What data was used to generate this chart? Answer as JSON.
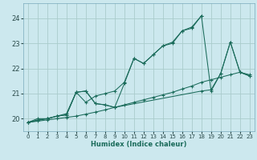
{
  "xlabel": "Humidex (Indice chaleur)",
  "ylabel": "",
  "background_color": "#cce8ee",
  "grid_color": "#aacccc",
  "line_color": "#1a6b5a",
  "xlim": [
    -0.5,
    23.5
  ],
  "ylim": [
    19.5,
    24.6
  ],
  "yticks": [
    20,
    21,
    22,
    23,
    24
  ],
  "xticks": [
    0,
    1,
    2,
    3,
    4,
    5,
    6,
    7,
    8,
    9,
    10,
    11,
    12,
    13,
    14,
    15,
    16,
    17,
    18,
    19,
    20,
    21,
    22,
    23
  ],
  "series": [
    {
      "x": [
        0,
        1,
        2,
        3,
        4,
        5,
        6,
        7,
        8,
        9,
        10,
        11,
        12,
        13,
        14,
        15,
        16,
        17,
        18
      ],
      "y": [
        19.85,
        20.0,
        20.0,
        20.1,
        20.2,
        21.05,
        20.65,
        20.9,
        21.0,
        21.1,
        21.45,
        22.4,
        22.2,
        22.55,
        22.9,
        23.0,
        23.5,
        23.6,
        24.1
      ]
    },
    {
      "x": [
        0,
        1,
        2,
        3,
        4,
        5,
        6,
        7,
        8,
        9,
        10,
        11,
        12,
        13,
        14,
        15,
        16,
        17,
        18,
        19,
        20,
        21,
        22,
        23
      ],
      "y": [
        19.85,
        19.9,
        19.95,
        20.0,
        20.05,
        20.1,
        20.18,
        20.26,
        20.35,
        20.45,
        20.55,
        20.65,
        20.75,
        20.85,
        20.95,
        21.05,
        21.18,
        21.3,
        21.45,
        21.55,
        21.65,
        21.75,
        21.85,
        21.75
      ]
    },
    {
      "x": [
        0,
        1,
        2,
        3,
        4,
        5,
        6,
        7,
        8,
        9,
        18,
        19,
        20,
        21,
        22,
        23
      ],
      "y": [
        19.85,
        19.95,
        20.0,
        20.1,
        20.15,
        21.05,
        21.1,
        20.6,
        20.55,
        20.45,
        21.1,
        21.15,
        21.8,
        23.05,
        21.85,
        21.7
      ]
    },
    {
      "x": [
        0,
        2,
        3,
        4,
        5,
        6,
        7,
        8,
        9,
        10,
        11,
        12,
        13,
        14,
        15,
        16,
        17,
        18,
        19,
        20,
        21,
        22,
        23
      ],
      "y": [
        19.85,
        20.0,
        20.1,
        20.15,
        21.05,
        21.1,
        20.6,
        20.55,
        20.45,
        21.4,
        22.4,
        22.2,
        22.55,
        22.9,
        23.05,
        23.5,
        23.65,
        24.1,
        21.1,
        21.8,
        23.05,
        21.85,
        21.7
      ]
    }
  ]
}
